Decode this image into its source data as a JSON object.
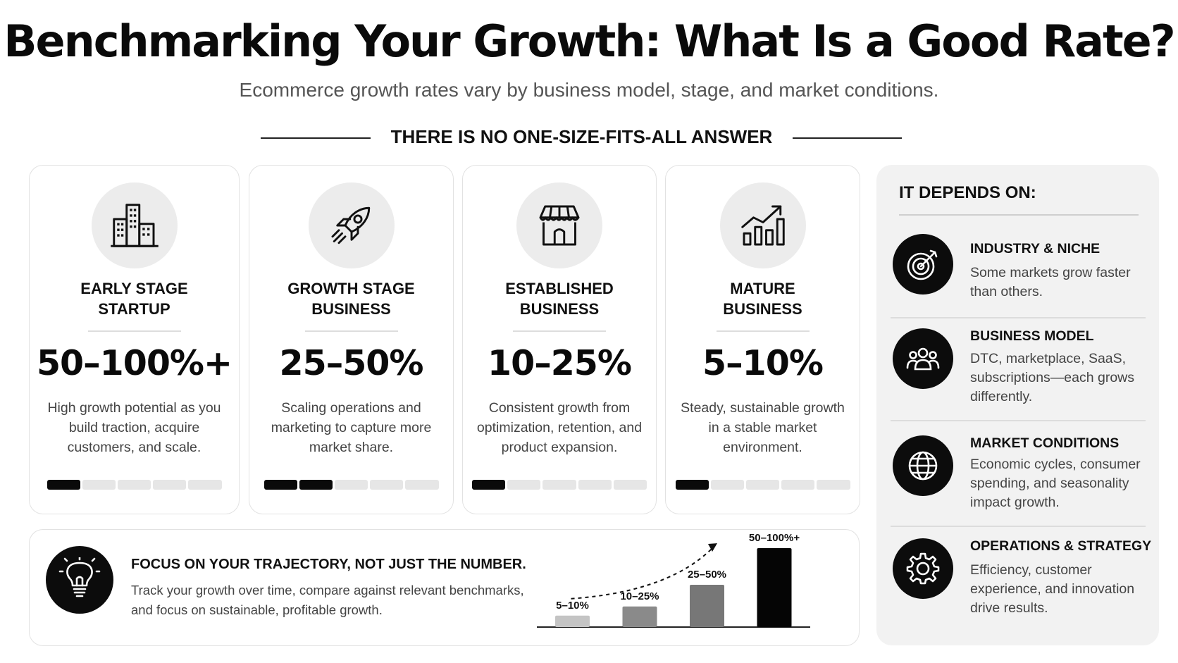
{
  "header": {
    "title": "Benchmarking Your Growth: What Is a Good Rate?",
    "subtitle": "Ecommerce growth rates vary by business model, stage, and market conditions.",
    "banner": "THERE IS NO ONE-SIZE-FITS-ALL ANSWER"
  },
  "stages": [
    {
      "icon": "buildings-icon",
      "title": "EARLY STAGE\nSTARTUP",
      "rate": "50–100%+",
      "desc": "High growth potential as you build traction, acquire customers, and scale.",
      "level": 1
    },
    {
      "icon": "rocket-icon",
      "title": "GROWTH STAGE\nBUSINESS",
      "rate": "25–50%",
      "desc": "Scaling operations and marketing to capture more market share.",
      "level": 2
    },
    {
      "icon": "storefront-icon",
      "title": "ESTABLISHED\nBUSINESS",
      "rate": "10–25%",
      "desc": "Consistent growth from optimization, retention, and product expansion.",
      "level": 1
    },
    {
      "icon": "growth-chart-icon",
      "title": "MATURE\nBUSINESS",
      "rate": "5–10%",
      "desc": "Steady, sustainable growth in a stable market environment.",
      "level": 1
    }
  ],
  "stage_bar_segments": 5,
  "depends": {
    "heading": "IT DEPENDS ON:",
    "factors": [
      {
        "icon": "target-icon",
        "title": "INDUSTRY & NICHE",
        "desc": "Some markets grow faster than others."
      },
      {
        "icon": "people-icon",
        "title": "BUSINESS MODEL",
        "desc": "DTC, marketplace, SaaS, subscriptions—each grows differently."
      },
      {
        "icon": "globe-icon",
        "title": "MARKET CONDITIONS",
        "desc": "Economic cycles, consumer spending, and seasonality impact growth."
      },
      {
        "icon": "gear-icon",
        "title": "OPERATIONS & STRATEGY",
        "desc": "Efficiency, customer experience, and innovation drive results."
      }
    ]
  },
  "trajectory": {
    "icon": "lightbulb-icon",
    "heading": "FOCUS ON YOUR TRAJECTORY, NOT JUST THE NUMBER.",
    "text": "Track your growth over time, compare against relevant benchmarks, and focus on sustainable, profitable growth."
  },
  "chart_data": {
    "type": "bar",
    "categories": [
      "5–10%",
      "10–25%",
      "25–50%",
      "50–100%+"
    ],
    "values": [
      1,
      1.8,
      3.7,
      6.9
    ],
    "colors": [
      "#c4c4c4",
      "#8a8a8a",
      "#777777",
      "#050505"
    ],
    "title": "",
    "xlabel": "",
    "ylabel": "",
    "trend_arrow": true
  },
  "colors": {
    "accent": "#0a0a0a",
    "bar_inactive": "#e6e6e6",
    "panel_bg": "#f2f2f2"
  }
}
